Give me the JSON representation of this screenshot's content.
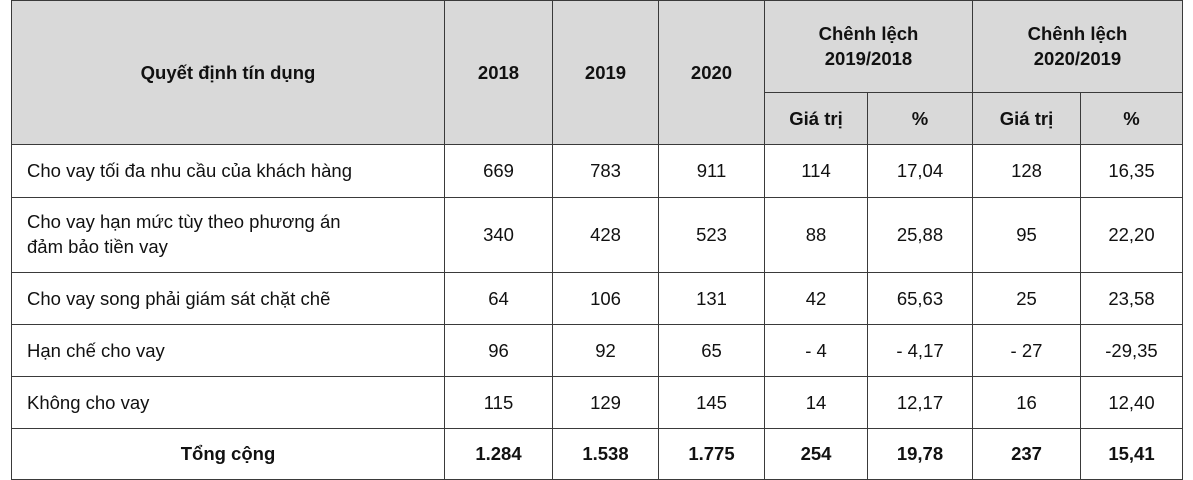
{
  "header": {
    "decision": "Quyết định tín dụng",
    "years": [
      "2018",
      "2019",
      "2020"
    ],
    "diff1_line1": "Chênh lệch",
    "diff1_line2": "2019/2018",
    "diff2_line1": "Chênh lệch",
    "diff2_line2": "2020/2019",
    "value_label": "Giá trị",
    "percent_label": "%"
  },
  "rows": [
    {
      "label": "Cho vay tối đa nhu cầu của khách hàng",
      "v2018": "669",
      "v2019": "783",
      "v2020": "911",
      "d1": "114",
      "p1": "17,04",
      "d2": "128",
      "p2": "16,35"
    },
    {
      "label_line1": "Cho vay hạn mức tùy theo phương án",
      "label_line2": "đảm bảo tiền vay",
      "v2018": "340",
      "v2019": "428",
      "v2020": "523",
      "d1": "88",
      "p1": "25,88",
      "d2": "95",
      "p2": "22,20"
    },
    {
      "label": "Cho vay song phải giám sát chặt chẽ",
      "v2018": "64",
      "v2019": "106",
      "v2020": "131",
      "d1": "42",
      "p1": "65,63",
      "d2": "25",
      "p2": "23,58"
    },
    {
      "label": "Hạn chế cho vay",
      "v2018": "96",
      "v2019": "92",
      "v2020": "65",
      "d1": "- 4",
      "p1": "- 4,17",
      "d2": "- 27",
      "p2": "-29,35"
    },
    {
      "label": "Không cho vay",
      "v2018": "115",
      "v2019": "129",
      "v2020": "145",
      "d1": "14",
      "p1": "12,17",
      "d2": "16",
      "p2": "12,40"
    }
  ],
  "total": {
    "label": "Tổng cộng",
    "v2018": "1.284",
    "v2019": "1.538",
    "v2020": "1.775",
    "d1": "254",
    "p1": "19,78",
    "d2": "237",
    "p2": "15,41"
  }
}
